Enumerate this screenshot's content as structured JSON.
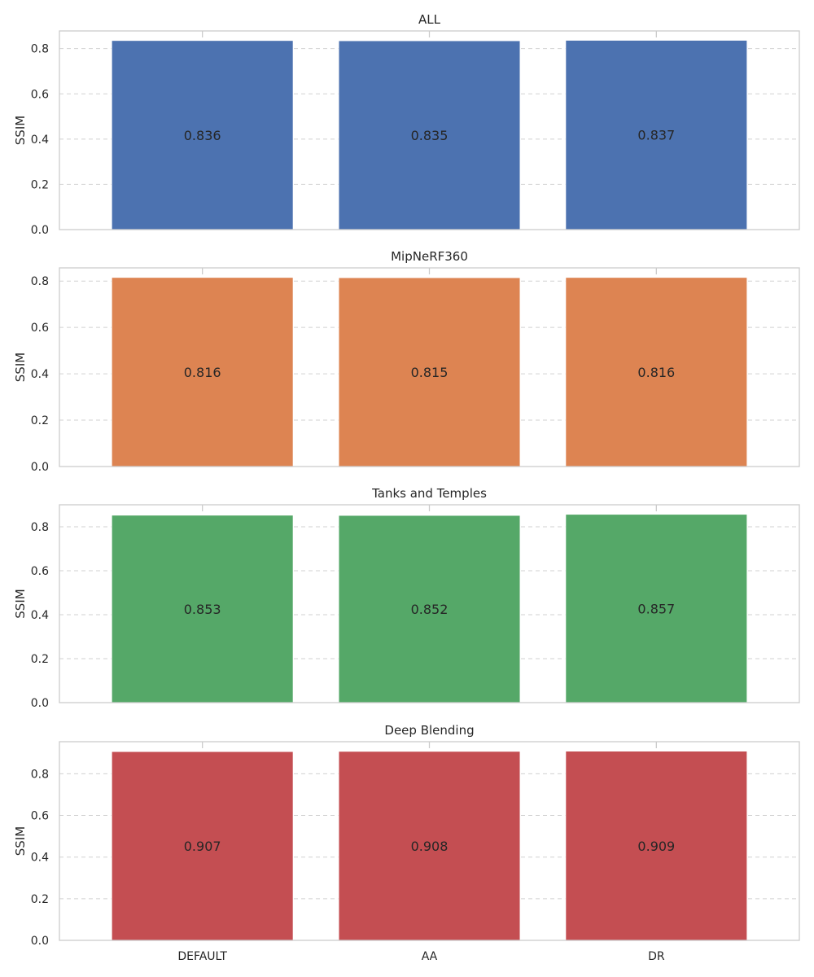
{
  "chart_data": [
    {
      "type": "bar",
      "title": "ALL",
      "ylabel": "SSIM",
      "categories": [
        "DEFAULT",
        "AA",
        "DR"
      ],
      "values": [
        0.836,
        0.835,
        0.837
      ],
      "value_labels": [
        "0.836",
        "0.835",
        "0.837"
      ],
      "yticks": [
        0.0,
        0.2,
        0.4,
        0.6,
        0.8
      ],
      "ytick_labels": [
        "0.0",
        "0.2",
        "0.4",
        "0.6",
        "0.8"
      ],
      "ylim": [
        0,
        0.878
      ],
      "color": "#4c72b0",
      "grid": true,
      "show_xtick_labels": false
    },
    {
      "type": "bar",
      "title": "MipNeRF360",
      "ylabel": "SSIM",
      "categories": [
        "DEFAULT",
        "AA",
        "DR"
      ],
      "values": [
        0.816,
        0.815,
        0.816
      ],
      "value_labels": [
        "0.816",
        "0.815",
        "0.816"
      ],
      "yticks": [
        0.0,
        0.2,
        0.4,
        0.6,
        0.8
      ],
      "ytick_labels": [
        "0.0",
        "0.2",
        "0.4",
        "0.6",
        "0.8"
      ],
      "ylim": [
        0,
        0.857
      ],
      "color": "#dd8452",
      "grid": true,
      "show_xtick_labels": false
    },
    {
      "type": "bar",
      "title": "Tanks and Temples",
      "ylabel": "SSIM",
      "categories": [
        "DEFAULT",
        "AA",
        "DR"
      ],
      "values": [
        0.853,
        0.852,
        0.857
      ],
      "value_labels": [
        "0.853",
        "0.852",
        "0.857"
      ],
      "yticks": [
        0.0,
        0.2,
        0.4,
        0.6,
        0.8
      ],
      "ytick_labels": [
        "0.0",
        "0.2",
        "0.4",
        "0.6",
        "0.8"
      ],
      "ylim": [
        0,
        0.9
      ],
      "color": "#55a868",
      "grid": true,
      "show_xtick_labels": false
    },
    {
      "type": "bar",
      "title": "Deep Blending",
      "ylabel": "SSIM",
      "categories": [
        "DEFAULT",
        "AA",
        "DR"
      ],
      "values": [
        0.907,
        0.908,
        0.909
      ],
      "value_labels": [
        "0.907",
        "0.908",
        "0.909"
      ],
      "yticks": [
        0.0,
        0.2,
        0.4,
        0.6,
        0.8
      ],
      "ytick_labels": [
        "0.0",
        "0.2",
        "0.4",
        "0.6",
        "0.8"
      ],
      "ylim": [
        0,
        0.954
      ],
      "color": "#c44e52",
      "grid": true,
      "show_xtick_labels": true
    }
  ]
}
